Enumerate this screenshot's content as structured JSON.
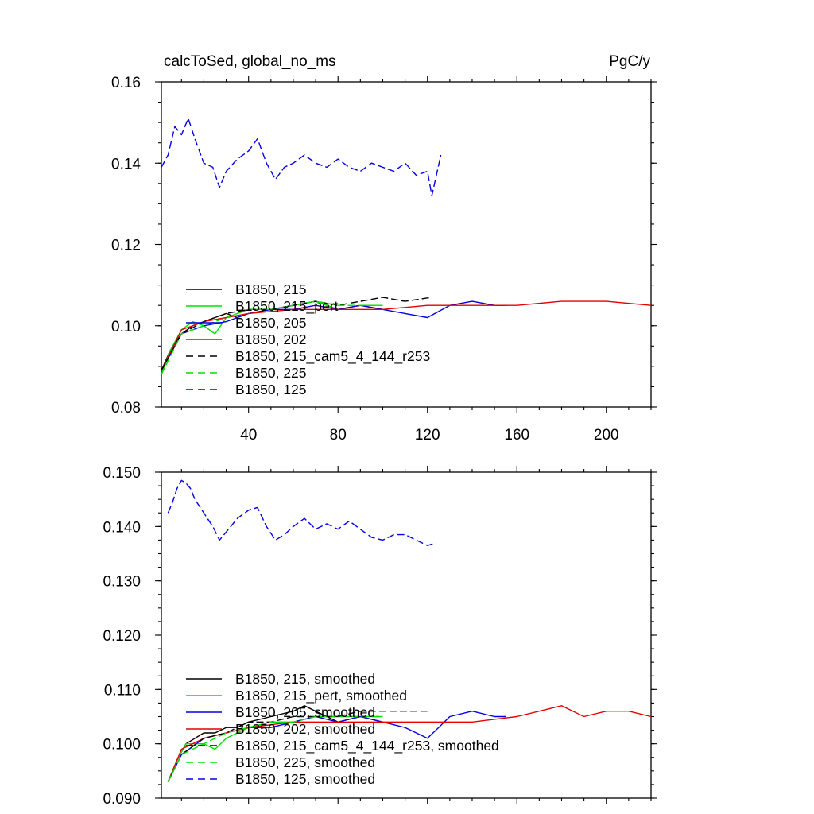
{
  "colors": {
    "black": "#000000",
    "green": "#00e000",
    "blue": "#0000e6",
    "red": "#e60000"
  },
  "chart_data": [
    {
      "type": "line",
      "title": "calcToSed, global_no_ms",
      "units": "PgC/y",
      "xlim": [
        1,
        220
      ],
      "ylim": [
        0.08,
        0.16
      ],
      "x_ticks": [
        40,
        80,
        120,
        160,
        200
      ],
      "y_ticks": [
        0.08,
        0.1,
        0.12,
        0.14,
        0.16
      ],
      "y_tick_labels": [
        "0.08",
        "0.10",
        "0.12",
        "0.14",
        "0.16"
      ],
      "x_tick_labels": [
        "40",
        "80",
        "120",
        "160",
        "200"
      ],
      "legend_position": "lower-left",
      "series": [
        {
          "name": "B1850, 215",
          "color": "#000000",
          "dash": "solid",
          "x": [
            1,
            5,
            10,
            15,
            20,
            25,
            30,
            35,
            40,
            50,
            60,
            70,
            80,
            90,
            100
          ],
          "y": [
            0.089,
            0.094,
            0.098,
            0.1,
            0.101,
            0.102,
            0.103,
            0.102,
            0.103,
            0.104,
            0.105,
            0.106,
            0.104,
            0.105,
            0.104
          ]
        },
        {
          "name": "B1850, 215_pert",
          "color": "#00e000",
          "dash": "solid",
          "x": [
            1,
            5,
            10,
            15,
            20,
            25,
            30,
            35,
            40,
            50,
            60,
            70,
            80,
            90,
            100
          ],
          "y": [
            0.088,
            0.094,
            0.099,
            0.101,
            0.1,
            0.098,
            0.102,
            0.103,
            0.104,
            0.104,
            0.105,
            0.106,
            0.104,
            0.105,
            0.105
          ]
        },
        {
          "name": "B1850, 205",
          "color": "#0000e6",
          "dash": "solid",
          "x": [
            1,
            10,
            20,
            30,
            40,
            50,
            60,
            70,
            80,
            90,
            100,
            110,
            120,
            130,
            140,
            150,
            155
          ],
          "y": [
            0.089,
            0.098,
            0.1,
            0.101,
            0.103,
            0.104,
            0.104,
            0.105,
            0.104,
            0.105,
            0.104,
            0.103,
            0.102,
            0.105,
            0.106,
            0.105,
            0.105
          ]
        },
        {
          "name": "B1850, 202",
          "color": "#e60000",
          "dash": "solid",
          "x": [
            1,
            10,
            20,
            30,
            40,
            60,
            80,
            100,
            120,
            140,
            160,
            180,
            200,
            220
          ],
          "y": [
            0.089,
            0.099,
            0.101,
            0.102,
            0.103,
            0.104,
            0.104,
            0.104,
            0.105,
            0.105,
            0.105,
            0.106,
            0.106,
            0.105
          ]
        },
        {
          "name": "B1850, 215_cam5_4_144_r253",
          "color": "#000000",
          "dash": "dashed",
          "x": [
            1,
            10,
            20,
            30,
            40,
            50,
            60,
            70,
            80,
            90,
            100,
            110,
            122
          ],
          "y": [
            0.089,
            0.098,
            0.101,
            0.103,
            0.104,
            0.104,
            0.105,
            0.106,
            0.105,
            0.106,
            0.107,
            0.106,
            0.107
          ]
        },
        {
          "name": "B1850, 225",
          "color": "#00e000",
          "dash": "dashed",
          "x": [
            1,
            10,
            20,
            30,
            40,
            50,
            60,
            70,
            80,
            90,
            100
          ],
          "y": [
            0.088,
            0.098,
            0.1,
            0.102,
            0.104,
            0.104,
            0.105,
            0.106,
            0.105,
            0.105,
            0.105
          ]
        },
        {
          "name": "B1850, 125",
          "color": "#0000e6",
          "dash": "dashed",
          "x": [
            1,
            4,
            7,
            10,
            13,
            16,
            20,
            24,
            27,
            30,
            35,
            40,
            44,
            48,
            52,
            56,
            60,
            65,
            70,
            75,
            80,
            85,
            90,
            95,
            100,
            105,
            110,
            115,
            120,
            122,
            126
          ],
          "y": [
            0.139,
            0.142,
            0.149,
            0.147,
            0.151,
            0.146,
            0.14,
            0.139,
            0.134,
            0.138,
            0.141,
            0.143,
            0.146,
            0.14,
            0.136,
            0.139,
            0.14,
            0.142,
            0.14,
            0.139,
            0.141,
            0.139,
            0.138,
            0.14,
            0.139,
            0.138,
            0.14,
            0.137,
            0.138,
            0.132,
            0.142
          ]
        }
      ]
    },
    {
      "type": "line",
      "title": "",
      "xlim": [
        1,
        220
      ],
      "ylim": [
        0.09,
        0.15
      ],
      "x_ticks": [
        40,
        80,
        120,
        160,
        200
      ],
      "y_ticks": [
        0.09,
        0.1,
        0.11,
        0.12,
        0.13,
        0.14,
        0.15
      ],
      "y_tick_labels": [
        "0.090",
        "0.100",
        "0.110",
        "0.120",
        "0.130",
        "0.140",
        "0.150"
      ],
      "legend_position": "lower-left",
      "series": [
        {
          "name": "B1850, 215, smoothed",
          "color": "#000000",
          "dash": "solid",
          "x": [
            4,
            8,
            12,
            16,
            20,
            25,
            30,
            35,
            40,
            50,
            60,
            65,
            70,
            80,
            90,
            100
          ],
          "y": [
            0.093,
            0.097,
            0.1,
            0.101,
            0.102,
            0.102,
            0.103,
            0.103,
            0.104,
            0.105,
            0.106,
            0.107,
            0.106,
            0.104,
            0.105,
            0.104
          ]
        },
        {
          "name": "B1850, 215_pert, smoothed",
          "color": "#00e000",
          "dash": "solid",
          "x": [
            4,
            8,
            12,
            16,
            20,
            25,
            30,
            35,
            40,
            50,
            60,
            70,
            80,
            90,
            100
          ],
          "y": [
            0.093,
            0.097,
            0.1,
            0.1,
            0.1,
            0.099,
            0.101,
            0.102,
            0.103,
            0.104,
            0.104,
            0.105,
            0.105,
            0.105,
            0.105
          ]
        },
        {
          "name": "B1850, 205, smoothed",
          "color": "#0000e6",
          "dash": "solid",
          "x": [
            4,
            10,
            20,
            30,
            40,
            50,
            60,
            70,
            80,
            90,
            100,
            110,
            115,
            120,
            125,
            130,
            140,
            150,
            155
          ],
          "y": [
            0.093,
            0.098,
            0.101,
            0.102,
            0.103,
            0.103,
            0.104,
            0.105,
            0.104,
            0.105,
            0.104,
            0.103,
            0.102,
            0.101,
            0.103,
            0.105,
            0.106,
            0.105,
            0.105
          ]
        },
        {
          "name": "B1850, 202, smoothed",
          "color": "#e60000",
          "dash": "solid",
          "x": [
            4,
            10,
            20,
            30,
            40,
            60,
            80,
            100,
            120,
            140,
            160,
            170,
            180,
            190,
            200,
            210,
            220
          ],
          "y": [
            0.093,
            0.099,
            0.101,
            0.102,
            0.103,
            0.104,
            0.104,
            0.104,
            0.104,
            0.104,
            0.105,
            0.106,
            0.107,
            0.105,
            0.106,
            0.106,
            0.105
          ]
        },
        {
          "name": "B1850, 215_cam5_4_144_r253, smoothed",
          "color": "#000000",
          "dash": "dashed",
          "x": [
            4,
            10,
            20,
            30,
            40,
            50,
            60,
            70,
            80,
            90,
            100,
            110,
            120
          ],
          "y": [
            0.093,
            0.098,
            0.101,
            0.102,
            0.104,
            0.104,
            0.105,
            0.105,
            0.105,
            0.106,
            0.106,
            0.106,
            0.106
          ]
        },
        {
          "name": "B1850, 225, smoothed",
          "color": "#00e000",
          "dash": "dashed",
          "x": [
            4,
            10,
            20,
            30,
            40,
            50,
            60,
            70,
            80,
            90,
            100
          ],
          "y": [
            0.093,
            0.098,
            0.1,
            0.102,
            0.103,
            0.104,
            0.104,
            0.105,
            0.105,
            0.105,
            0.105
          ]
        },
        {
          "name": "B1850, 125, smoothed",
          "color": "#0000e6",
          "dash": "dashed",
          "x": [
            4,
            6,
            8,
            10,
            12,
            14,
            16,
            20,
            24,
            27,
            30,
            35,
            40,
            44,
            48,
            52,
            56,
            60,
            65,
            70,
            75,
            80,
            85,
            90,
            95,
            100,
            105,
            110,
            115,
            120,
            124
          ],
          "y": [
            0.1425,
            0.1445,
            0.147,
            0.1485,
            0.148,
            0.147,
            0.145,
            0.1425,
            0.14,
            0.1375,
            0.139,
            0.1415,
            0.143,
            0.1435,
            0.14,
            0.1375,
            0.1385,
            0.14,
            0.1415,
            0.1395,
            0.1405,
            0.1395,
            0.141,
            0.1395,
            0.138,
            0.1375,
            0.1385,
            0.1385,
            0.1375,
            0.1365,
            0.137
          ]
        }
      ]
    }
  ]
}
